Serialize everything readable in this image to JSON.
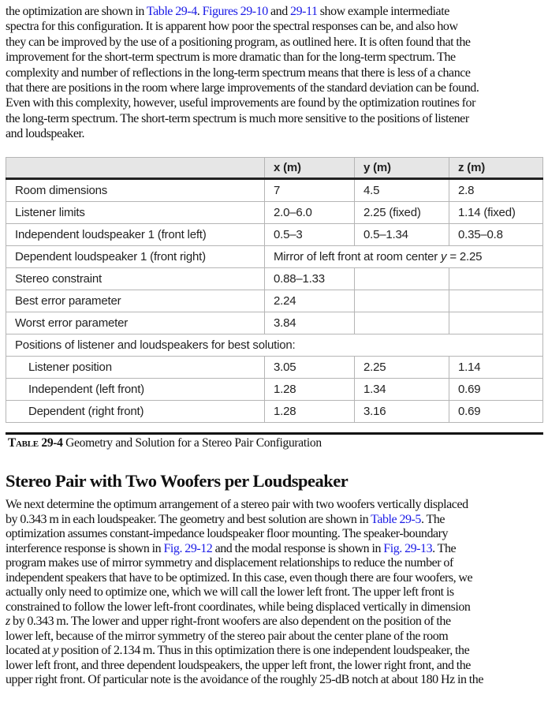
{
  "intro_paragraph": [
    [
      {
        "t": "the optimization are shown in "
      },
      {
        "t": "Table 29-4",
        "link": true
      },
      {
        "t": ". "
      },
      {
        "t": "Figures 29-10",
        "link": true
      },
      {
        "t": " and "
      },
      {
        "t": "29-11",
        "link": true
      },
      {
        "t": " show example intermediate"
      }
    ],
    [
      {
        "t": "spectra for this configuration. It is apparent how poor the spectral responses can be, and also how"
      }
    ],
    [
      {
        "t": "they can be improved by the use of a positioning program, as outlined here. It is often found that the"
      }
    ],
    [
      {
        "t": "improvement for the short-term spectrum is more dramatic than for the long-term spectrum. The"
      }
    ],
    [
      {
        "t": "complexity and number of reflections in the long-term spectrum means that there is less of a chance"
      }
    ],
    [
      {
        "t": "that there are positions in the room where large improvements of the standard deviation can be found."
      }
    ],
    [
      {
        "t": "Even with this complexity, however, useful improvements are found by the optimization routines for"
      }
    ],
    [
      {
        "t": "the long-term spectrum. The short-term spectrum is much more sensitive to the positions of listener"
      }
    ],
    [
      {
        "t": "and loudspeaker."
      }
    ]
  ],
  "table": {
    "headers": [
      "",
      "x (m)",
      "y (m)",
      "z (m)"
    ],
    "rows": [
      [
        "Room dimensions",
        "7",
        "4.5",
        "2.8"
      ],
      [
        "Listener limits",
        "2.0–6.0",
        "2.25 (fixed)",
        "1.14 (fixed)"
      ],
      [
        "Independent loudspeaker 1 (front left)",
        "0.5–3",
        "0.5–1.34",
        "0.35–0.8"
      ]
    ],
    "mirror_row": {
      "label": "Dependent loudspeaker 1 (front right)",
      "text": "Mirror of left front at room center ",
      "var": "y",
      "value": " = 2.25"
    },
    "rows2": [
      [
        "Stereo constraint",
        "0.88–1.33",
        "",
        ""
      ],
      [
        "Best error parameter",
        "2.24",
        "",
        ""
      ],
      [
        "Worst error parameter",
        "3.84",
        "",
        ""
      ]
    ],
    "section_label": "Positions of listener and loudspeakers for best solution:",
    "solution_rows": [
      [
        "Listener position",
        "3.05",
        "2.25",
        "1.14"
      ],
      [
        "Independent (left front)",
        "1.28",
        "1.34",
        "0.69"
      ],
      [
        "Dependent (right front)",
        "1.28",
        "3.16",
        "0.69"
      ]
    ]
  },
  "caption": {
    "label": "Table 29-4",
    "text": " Geometry and Solution for a Stereo Pair Configuration"
  },
  "section_heading": "Stereo Pair with Two Woofers per Loudspeaker",
  "body_paragraph": [
    [
      {
        "t": "We next determine the optimum arrangement of a stereo pair with two woofers vertically displaced"
      }
    ],
    [
      {
        "t": "by 0.343 m in each loudspeaker. The geometry and best solution are shown in "
      },
      {
        "t": "Table 29-5",
        "link": true
      },
      {
        "t": ". The"
      }
    ],
    [
      {
        "t": "optimization assumes constant-impedance loudspeaker floor mounting. The speaker-boundary"
      }
    ],
    [
      {
        "t": "interference response is shown in "
      },
      {
        "t": "Fig. 29-12",
        "link": true
      },
      {
        "t": " and the modal response is shown in "
      },
      {
        "t": "Fig. 29-13",
        "link": true
      },
      {
        "t": ". The"
      }
    ],
    [
      {
        "t": "program makes use of mirror symmetry and displacement relationships to reduce the number of"
      }
    ],
    [
      {
        "t": "independent speakers that have to be optimized. In this case, even though there are four woofers, we"
      }
    ],
    [
      {
        "t": "actually only need to optimize one, which we will call the lower left front. The upper left front is"
      }
    ],
    [
      {
        "t": "constrained to follow the lower left-front coordinates, while being displaced vertically in dimension"
      }
    ],
    [
      {
        "t": "z",
        "i": true
      },
      {
        "t": " by 0.343 m. The lower and upper right-front woofers are also dependent on the position of the"
      }
    ],
    [
      {
        "t": "lower left, because of the mirror symmetry of the stereo pair about the center plane of the room"
      }
    ],
    [
      {
        "t": "located at "
      },
      {
        "t": "y",
        "i": true
      },
      {
        "t": " position of 2.134 m. Thus in this optimization there is one independent loudspeaker, the"
      }
    ],
    [
      {
        "t": "lower left front, and three dependent loudspeakers, the upper left front, the lower right front, and the"
      }
    ],
    [
      {
        "t": "upper right front. Of particular note is the avoidance of the roughly 25-dB notch at about 180 Hz in the"
      }
    ]
  ],
  "colors": {
    "link": "#1a1ae6",
    "table_header_bg": "#e6e6e6"
  }
}
